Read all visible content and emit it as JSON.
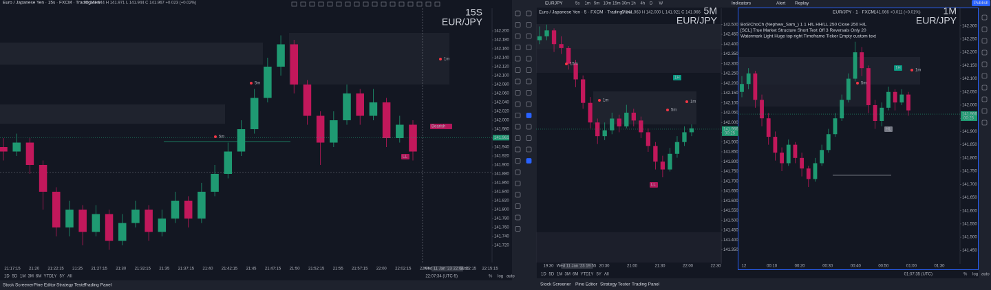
{
  "up_color": "#1f9a72",
  "down_color": "#c2185b",
  "top_bar": {
    "symbol": "EURJPY",
    "timeframes": [
      "5s",
      "1m",
      "5m",
      "10m",
      "15m",
      "30m",
      "1h",
      "4h",
      "D",
      "W"
    ],
    "indicators": "Indicators",
    "alert": "Alert",
    "replay": "Replay",
    "publish": "Publish"
  },
  "indicators": [
    "BoS/ChoCh (Nephew_Sam_) 1 1 H/L HH/LL 250 Close 250 H/L",
    "[SCL] True Market Structure Short Text Off 3 Reversals Only 20",
    "Watermark Light Huge top right Timeframe Ticker Empty custom text"
  ],
  "tabs_left": [
    "Stock Screener",
    "Pine Editor",
    "Strategy Tester",
    "Trading Panel"
  ],
  "tabs_right": [
    "Stock Screener",
    "Pine Editor",
    "Strategy Tester",
    "Trading Panel"
  ],
  "panes": [
    {
      "header": "Euro / Japanese Yen · 15s · FXCM · TradingView",
      "ohlc": "O 141.944 H 141.971 L 141.944 C 141.967 +0.023 (+0.02%)",
      "watermark": {
        "timeframe": "15S",
        "symbol": "EUR/JPY"
      },
      "ylim": [
        141.7,
        142.22
      ],
      "yticks": [
        {
          "value": 141.72,
          "label": "141.720"
        },
        {
          "value": 141.74,
          "label": "141.740"
        },
        {
          "value": 141.76,
          "label": "141.760"
        },
        {
          "value": 141.78,
          "label": "141.780"
        },
        {
          "value": 141.8,
          "label": "141.800"
        },
        {
          "value": 141.82,
          "label": "141.820"
        },
        {
          "value": 141.84,
          "label": "141.840"
        },
        {
          "value": 141.86,
          "label": "141.860"
        },
        {
          "value": 141.88,
          "label": "141.880"
        },
        {
          "value": 141.9,
          "label": "141.900"
        },
        {
          "value": 141.92,
          "label": "141.920"
        },
        {
          "value": 141.94,
          "label": "141.940"
        },
        {
          "value": 141.96,
          "label": "141.960"
        },
        {
          "value": 141.98,
          "label": "141.980"
        },
        {
          "value": 142,
          "label": "142.000"
        },
        {
          "value": 142.02,
          "label": "142.020"
        },
        {
          "value": 142.04,
          "label": "142.040"
        },
        {
          "value": 142.06,
          "label": "142.060"
        },
        {
          "value": 142.08,
          "label": "142.080"
        },
        {
          "value": 142.1,
          "label": "142.100"
        },
        {
          "value": 142.12,
          "label": "142.120"
        },
        {
          "value": 142.14,
          "label": "142.140"
        },
        {
          "value": 142.16,
          "label": "142.160"
        },
        {
          "value": 142.18,
          "label": "142.180"
        },
        {
          "value": 142.2,
          "label": "142.200"
        }
      ],
      "time_labels": [
        "21:17:15",
        "21:20",
        "21:22:15",
        "21:25",
        "21:27:15",
        "21:30",
        "21:32:15",
        "21:35",
        "21:37:15",
        "21:40",
        "21:42:15",
        "21:45",
        "21:47:15",
        "21:50",
        "21:52:15",
        "21:55",
        "21:57:15",
        "22:00",
        "22:02:15",
        "22:05",
        "Wed 11 Jan '23  22:08:45",
        "22:12:15",
        "22:15:15"
      ],
      "last_price": {
        "value": 141.961,
        "label": "141.961"
      },
      "annotations": [
        {
          "text": "5m",
          "color": "#f23645"
        },
        {
          "text": "5m",
          "color": "#f23645"
        },
        {
          "text": "1m",
          "color": "#f23645"
        },
        {
          "text": "Bearish",
          "color": "#b2185b"
        },
        {
          "text": "LL",
          "color": "#b2185b"
        }
      ],
      "range_buttons": [
        "1D",
        "5D",
        "1M",
        "3M",
        "6M",
        "YTD",
        "1Y",
        "5Y",
        "All"
      ],
      "clock": "22:07:34 (UTC-5)",
      "scale_buttons": [
        "%",
        "log",
        "auto"
      ],
      "candles": [
        [
          141.94,
          141.96,
          141.91,
          141.93
        ],
        [
          141.93,
          141.97,
          141.92,
          141.95
        ],
        [
          141.95,
          141.96,
          141.88,
          141.9
        ],
        [
          141.9,
          141.91,
          141.8,
          141.84
        ],
        [
          141.84,
          141.85,
          141.74,
          141.76
        ],
        [
          141.76,
          141.82,
          141.74,
          141.8
        ],
        [
          141.8,
          141.81,
          141.72,
          141.75
        ],
        [
          141.75,
          141.81,
          141.74,
          141.79
        ],
        [
          141.79,
          141.8,
          141.71,
          141.73
        ],
        [
          141.73,
          141.79,
          141.72,
          141.77
        ],
        [
          141.77,
          141.82,
          141.76,
          141.8
        ],
        [
          141.8,
          141.81,
          141.73,
          141.75
        ],
        [
          141.75,
          141.8,
          141.74,
          141.78
        ],
        [
          141.78,
          141.84,
          141.77,
          141.82
        ],
        [
          141.82,
          141.83,
          141.76,
          141.78
        ],
        [
          141.78,
          141.86,
          141.77,
          141.84
        ],
        [
          141.84,
          141.9,
          141.83,
          141.88
        ],
        [
          141.88,
          141.95,
          141.87,
          141.93
        ],
        [
          141.93,
          142.0,
          141.92,
          141.98
        ],
        [
          141.98,
          142.07,
          141.97,
          142.05
        ],
        [
          142.05,
          142.14,
          142.04,
          142.12
        ],
        [
          142.12,
          142.19,
          142.1,
          142.17
        ],
        [
          142.17,
          142.18,
          142.06,
          142.08
        ],
        [
          142.08,
          142.09,
          141.99,
          142.01
        ],
        [
          142.01,
          142.02,
          141.9,
          141.95
        ],
        [
          141.95,
          142.02,
          141.94,
          142.0
        ],
        [
          142.0,
          142.08,
          141.99,
          142.06
        ],
        [
          142.06,
          142.07,
          141.99,
          142.01
        ],
        [
          142.01,
          142.07,
          142.0,
          142.04
        ],
        [
          142.04,
          142.05,
          141.94,
          141.96
        ],
        [
          141.96,
          142.01,
          141.95,
          141.99
        ],
        [
          141.99,
          142.0,
          141.91,
          141.93
        ]
      ]
    },
    {
      "header": "Euro / Japanese Yen · 5 · FXCM · TradingView",
      "ohlc": "O 141.963 H 142.000 L 141.921 C 141.966",
      "watermark": {
        "timeframe": "5M",
        "symbol": "EUR/JPY"
      },
      "ylim": [
        141.32,
        142.52
      ],
      "yticks": [
        {
          "value": 141.35,
          "label": "141.350"
        },
        {
          "value": 141.4,
          "label": "141.400"
        },
        {
          "value": 141.45,
          "label": "141.450"
        },
        {
          "value": 141.5,
          "label": "141.500"
        },
        {
          "value": 141.55,
          "label": "141.550"
        },
        {
          "value": 141.6,
          "label": "141.600"
        },
        {
          "value": 141.65,
          "label": "141.650"
        },
        {
          "value": 141.7,
          "label": "141.700"
        },
        {
          "value": 141.75,
          "label": "141.750"
        },
        {
          "value": 141.8,
          "label": "141.800"
        },
        {
          "value": 141.85,
          "label": "141.850"
        },
        {
          "value": 141.9,
          "label": "141.900"
        },
        {
          "value": 141.95,
          "label": "141.950"
        },
        {
          "value": 142,
          "label": "142.000"
        },
        {
          "value": 142.05,
          "label": "142.050"
        },
        {
          "value": 142.1,
          "label": "142.100"
        },
        {
          "value": 142.15,
          "label": "142.150"
        },
        {
          "value": 142.2,
          "label": "142.200"
        },
        {
          "value": 142.25,
          "label": "142.250"
        },
        {
          "value": 142.3,
          "label": "142.300"
        },
        {
          "value": 142.35,
          "label": "142.350"
        },
        {
          "value": 142.4,
          "label": "142.400"
        },
        {
          "value": 142.45,
          "label": "142.450"
        },
        {
          "value": 142.5,
          "label": "142.500"
        }
      ],
      "time_labels": [
        "19:30",
        "Wed 11 Jan '23  19:55",
        "20:30",
        "21:00",
        "21:30",
        "22:00",
        "22:30"
      ],
      "last_price": {
        "value": 141.966,
        "label": "141.966"
      },
      "countdown": "00:25",
      "annotations": [
        {
          "text": "15m",
          "color": "#f23645"
        },
        {
          "text": "1m",
          "color": "#f23645"
        },
        {
          "text": "1H",
          "color": "#089981"
        },
        {
          "text": "5m",
          "color": "#f23645"
        },
        {
          "text": "1m",
          "color": "#f23645"
        },
        {
          "text": "LL",
          "color": "#b2185b"
        }
      ],
      "range_buttons": [
        "1D",
        "5D",
        "1M",
        "3M",
        "6M",
        "YTD",
        "1Y",
        "5Y",
        "All"
      ],
      "candles": [
        [
          142.42,
          142.49,
          142.4,
          142.44
        ],
        [
          142.44,
          142.5,
          142.42,
          142.47
        ],
        [
          142.47,
          142.48,
          142.36,
          142.4
        ],
        [
          142.4,
          142.44,
          142.35,
          142.38
        ],
        [
          142.38,
          142.39,
          142.27,
          142.3
        ],
        [
          142.3,
          142.32,
          142.18,
          142.22
        ],
        [
          142.22,
          142.24,
          142.07,
          142.1
        ],
        [
          142.1,
          142.13,
          141.97,
          142.0
        ],
        [
          142.0,
          142.02,
          141.89,
          141.93
        ],
        [
          141.93,
          142.0,
          141.91,
          141.96
        ],
        [
          141.96,
          142.05,
          141.94,
          142.02
        ],
        [
          142.02,
          142.04,
          141.95,
          141.98
        ],
        [
          141.98,
          142.09,
          141.97,
          142.05
        ],
        [
          142.05,
          142.07,
          141.98,
          142.01
        ],
        [
          142.01,
          142.03,
          141.92,
          141.95
        ],
        [
          141.95,
          141.97,
          141.85,
          141.88
        ],
        [
          141.88,
          141.9,
          141.76,
          141.8
        ],
        [
          141.8,
          141.83,
          141.72,
          141.76
        ],
        [
          141.76,
          141.87,
          141.75,
          141.84
        ],
        [
          141.84,
          141.93,
          141.82,
          141.9
        ],
        [
          141.9,
          141.98,
          141.88,
          141.95
        ],
        [
          141.95,
          141.99,
          141.93,
          141.97
        ]
      ]
    },
    {
      "header": "EUR/JPY · 1 · FXCM",
      "ohlc": "141.966 +0.011 (+0.01%)",
      "watermark": {
        "timeframe": "1M",
        "symbol": "EUR/JPY"
      },
      "ylim": [
        141.43,
        142.32
      ],
      "yticks": [
        {
          "value": 141.45,
          "label": "141.450"
        },
        {
          "value": 141.5,
          "label": "141.500"
        },
        {
          "value": 141.55,
          "label": "141.550"
        },
        {
          "value": 141.6,
          "label": "141.600"
        },
        {
          "value": 141.65,
          "label": "141.650"
        },
        {
          "value": 141.7,
          "label": "141.700"
        },
        {
          "value": 141.75,
          "label": "141.750"
        },
        {
          "value": 141.8,
          "label": "141.800"
        },
        {
          "value": 141.85,
          "label": "141.850"
        },
        {
          "value": 141.9,
          "label": "141.900"
        },
        {
          "value": 141.95,
          "label": "141.950"
        },
        {
          "value": 142,
          "label": "142.000"
        },
        {
          "value": 142.05,
          "label": "142.050"
        },
        {
          "value": 142.1,
          "label": "142.100"
        },
        {
          "value": 142.15,
          "label": "142.150"
        },
        {
          "value": 142.2,
          "label": "142.200"
        },
        {
          "value": 142.25,
          "label": "142.250"
        },
        {
          "value": 142.3,
          "label": "142.300"
        }
      ],
      "time_labels": [
        "12",
        "00:10",
        "00:20",
        "00:30",
        "00:40",
        "00:50",
        "01:00",
        "01:30"
      ],
      "last_price": {
        "value": 141.966,
        "label": "141.966"
      },
      "countdown": "00:25",
      "annotations": [
        {
          "text": "1H",
          "color": "#089981"
        },
        {
          "text": "1m",
          "color": "#f23645"
        },
        {
          "text": "5m",
          "color": "#f23645"
        },
        {
          "text": "HL",
          "color": "#787b86"
        }
      ],
      "clock": "01:07:35 (UTC)",
      "scale_buttons": [
        "%",
        "log",
        "auto"
      ],
      "candles": [
        [
          142.05,
          142.11,
          142.03,
          142.08
        ],
        [
          142.08,
          142.14,
          142.06,
          142.12
        ],
        [
          142.12,
          142.13,
          141.99,
          142.02
        ],
        [
          142.02,
          142.04,
          141.92,
          141.95
        ],
        [
          141.95,
          141.97,
          141.85,
          141.88
        ],
        [
          141.88,
          141.9,
          141.79,
          141.82
        ],
        [
          141.82,
          141.84,
          141.75,
          141.78
        ],
        [
          141.78,
          141.87,
          141.77,
          141.85
        ],
        [
          141.85,
          141.86,
          141.78,
          141.8
        ],
        [
          141.8,
          141.82,
          141.73,
          141.76
        ],
        [
          141.76,
          141.77,
          141.69,
          141.72
        ],
        [
          141.72,
          141.8,
          141.71,
          141.78
        ],
        [
          141.78,
          141.85,
          141.77,
          141.83
        ],
        [
          141.83,
          141.91,
          141.82,
          141.89
        ],
        [
          141.89,
          141.97,
          141.88,
          141.95
        ],
        [
          141.95,
          142.04,
          141.94,
          142.02
        ],
        [
          142.02,
          142.12,
          142.01,
          142.1
        ],
        [
          142.1,
          142.24,
          142.09,
          142.2
        ],
        [
          142.2,
          142.22,
          142.11,
          142.14
        ],
        [
          142.14,
          142.15,
          141.97,
          142.0
        ],
        [
          142.0,
          142.02,
          141.91,
          141.94
        ],
        [
          141.94,
          142.01,
          141.92,
          141.99
        ],
        [
          141.99,
          142.07,
          141.98,
          142.05
        ],
        [
          142.05,
          142.06,
          141.98,
          142.01
        ],
        [
          142.01,
          142.06,
          142.0,
          142.04
        ],
        [
          142.04,
          142.05,
          141.96,
          141.98
        ]
      ]
    }
  ]
}
